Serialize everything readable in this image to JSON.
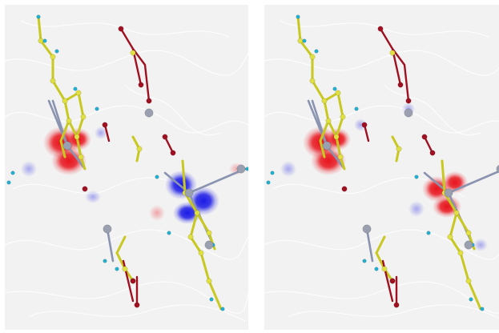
{
  "figure": {
    "panels": [
      {
        "id": "left",
        "lobe_colors": [
          "#e8141c",
          "#1a1ae6"
        ]
      },
      {
        "id": "right",
        "lobe_colors": [
          "#e8141c",
          "#e8141c"
        ]
      }
    ],
    "colors": {
      "background": "#f2f2f2",
      "contour": "#ffffff",
      "bond_carbon": "#c8c820",
      "atom_carbon": "#e0e040",
      "atom_oxygen": "#a01020",
      "atom_hydrogen": "#20b0d0",
      "atom_metal": "#9aa0b0",
      "bond_metal": "#8a94b0"
    }
  }
}
